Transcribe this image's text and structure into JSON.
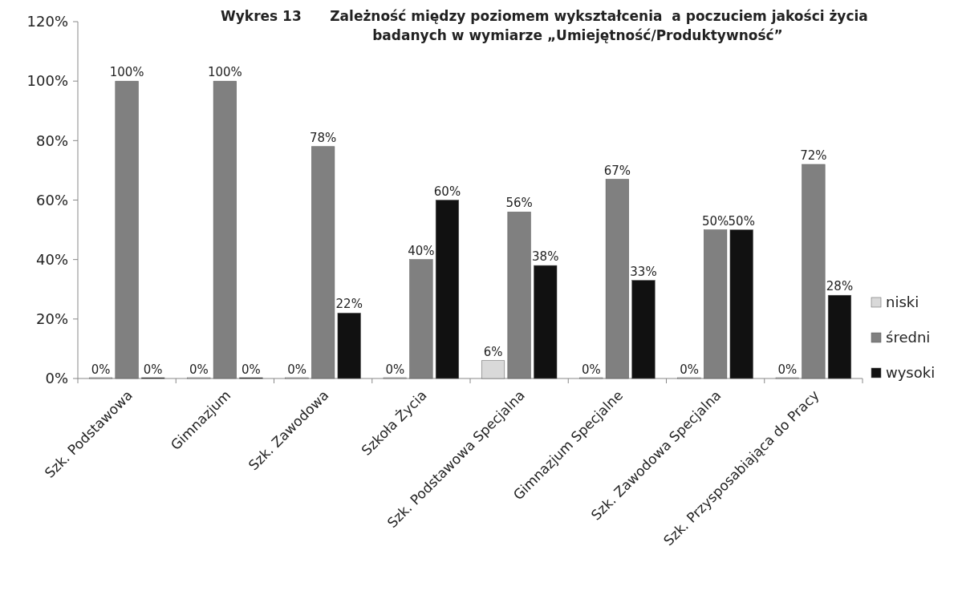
{
  "chart_data": {
    "type": "bar",
    "title": "Wykres 13      Zależność między poziomem wykształcenia  a poczuciem jakości życia\nbadanych w wymiarze „Umiejętność/Produktywność”",
    "categories": [
      "Szk. Podstawowa",
      "Gimnazjum",
      "Szk. Zawodowa",
      "Szkoła Życia",
      "Szk. Podstawowa Specjalna",
      "Gimnazjum Specjalne",
      "Szk. Zawodowa Specjalna",
      "Szk. Przysposabiająca do Pracy"
    ],
    "series": [
      {
        "name": "niski",
        "color": "#d9d9d9",
        "values": [
          0,
          0,
          0,
          0,
          6,
          0,
          0,
          0
        ],
        "value_labels": [
          "0%",
          "0%",
          "0%",
          "0%",
          "6%",
          "0%",
          "0%",
          "0%"
        ]
      },
      {
        "name": "średni",
        "color": "#808080",
        "values": [
          100,
          100,
          78,
          40,
          56,
          67,
          50,
          72
        ],
        "value_labels": [
          "100%",
          "100%",
          "78%",
          "40%",
          "56%",
          "67%",
          "50%",
          "72%"
        ]
      },
      {
        "name": "wysoki",
        "color": "#111111",
        "values": [
          0,
          0,
          22,
          60,
          38,
          33,
          50,
          28
        ],
        "value_labels": [
          "0%",
          "0%",
          "22%",
          "60%",
          "38%",
          "33%",
          "50%",
          "28%"
        ]
      }
    ],
    "ylim": [
      0,
      120
    ],
    "yticks": [
      {
        "value": 0,
        "label": "0%"
      },
      {
        "value": 20,
        "label": "20%"
      },
      {
        "value": 40,
        "label": "40%"
      },
      {
        "value": 60,
        "label": "60%"
      },
      {
        "value": 80,
        "label": "80%"
      },
      {
        "value": 100,
        "label": "100%"
      },
      {
        "value": 120,
        "label": "120%"
      }
    ],
    "grid": false,
    "legend": "right"
  }
}
